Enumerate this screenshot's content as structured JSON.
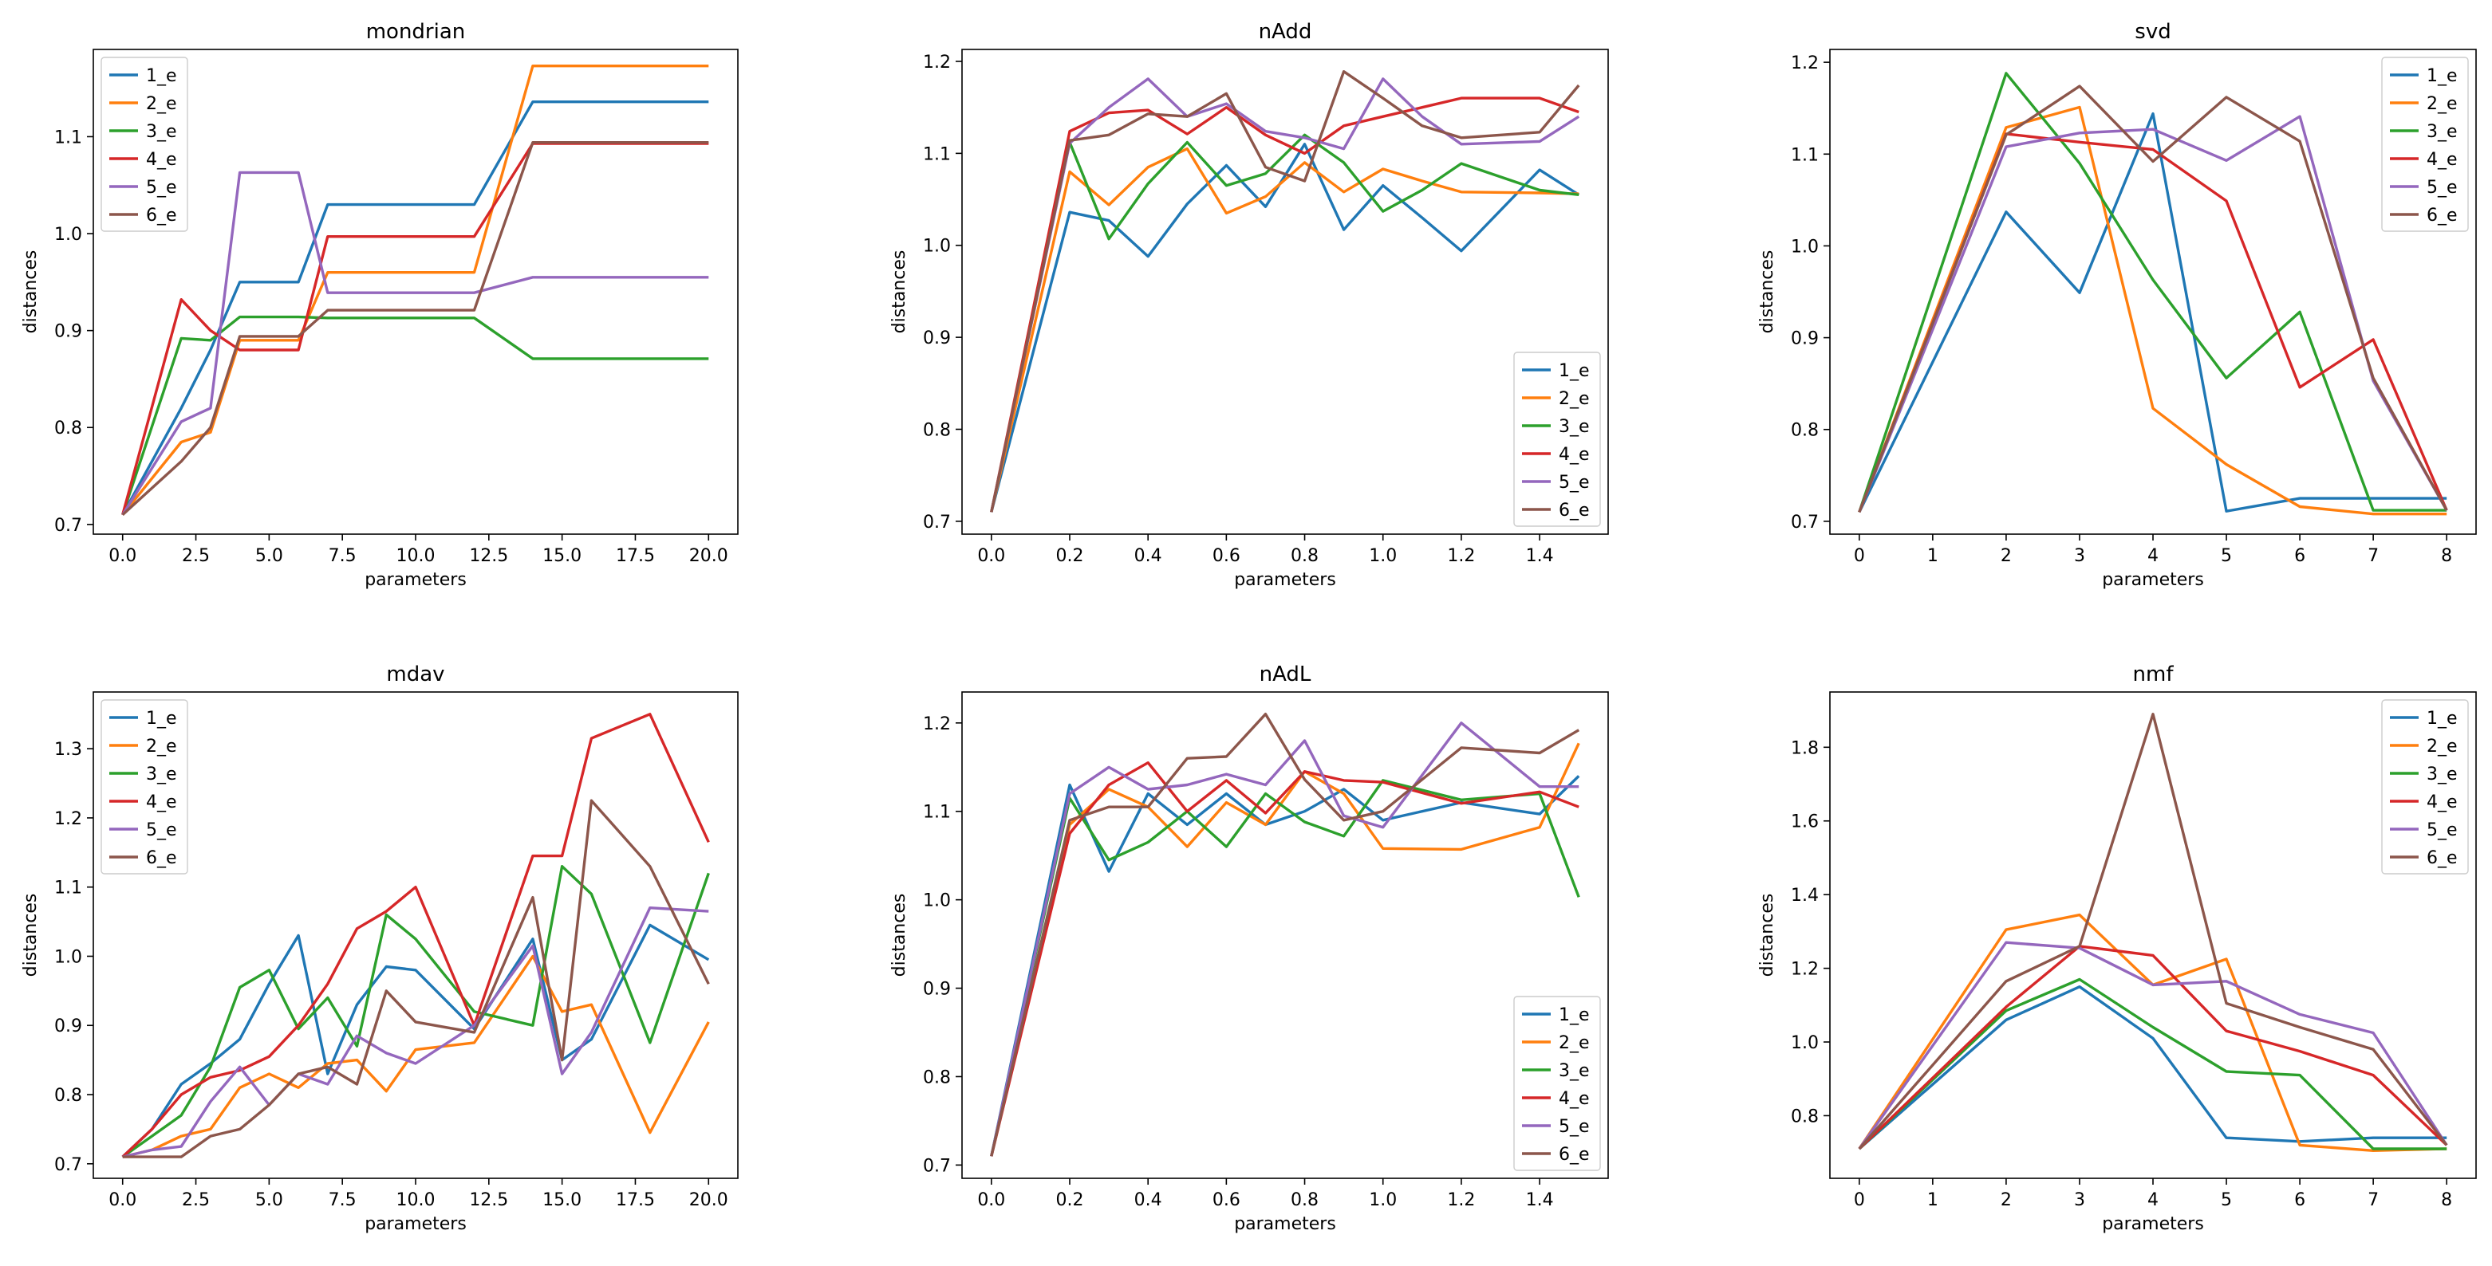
{
  "colors": [
    "#1f77b4",
    "#ff7f0e",
    "#2ca02c",
    "#d62728",
    "#9467bd",
    "#8c564b"
  ],
  "chart_data": [
    {
      "type": "line",
      "title": "mondrian",
      "xlabel": "parameters",
      "ylabel": "distances",
      "xlim": [
        -1,
        21
      ],
      "ylim": [
        0.69,
        1.19
      ],
      "xticks": [
        0.0,
        2.5,
        5.0,
        7.5,
        10.0,
        12.5,
        15.0,
        17.5,
        20.0
      ],
      "xtick_labels": [
        "0.0",
        "2.5",
        "5.0",
        "7.5",
        "10.0",
        "12.5",
        "15.0",
        "17.5",
        "20.0"
      ],
      "yticks": [
        0.7,
        0.8,
        0.9,
        1.0,
        1.1
      ],
      "ytick_labels": [
        "0.7",
        "0.8",
        "0.9",
        "1.0",
        "1.1"
      ],
      "legend_position": "upper-left",
      "x": [
        0,
        2,
        3,
        4,
        5,
        6,
        7,
        8,
        9,
        10,
        11,
        12,
        14,
        16,
        18,
        20
      ],
      "series": [
        {
          "name": "1_e",
          "values": [
            0.71,
            0.82,
            0.88,
            0.95,
            0.95,
            0.95,
            1.03,
            1.03,
            1.03,
            1.03,
            1.03,
            1.03,
            1.136,
            1.136,
            1.136,
            1.136
          ]
        },
        {
          "name": "2_e",
          "values": [
            0.71,
            0.785,
            0.795,
            0.89,
            0.89,
            0.89,
            0.96,
            0.96,
            0.96,
            0.96,
            0.96,
            0.96,
            1.173,
            1.173,
            1.173,
            1.173
          ]
        },
        {
          "name": "3_e",
          "values": [
            0.71,
            0.892,
            0.89,
            0.914,
            0.914,
            0.914,
            0.913,
            0.913,
            0.913,
            0.913,
            0.913,
            0.913,
            0.871,
            0.871,
            0.871,
            0.871
          ]
        },
        {
          "name": "4_e",
          "values": [
            0.71,
            0.932,
            0.9,
            0.88,
            0.88,
            0.88,
            0.997,
            0.997,
            0.997,
            0.997,
            0.997,
            0.997,
            1.093,
            1.093,
            1.093,
            1.093
          ]
        },
        {
          "name": "5_e",
          "values": [
            0.71,
            0.806,
            0.82,
            1.063,
            1.063,
            1.063,
            0.939,
            0.939,
            0.939,
            0.939,
            0.939,
            0.939,
            0.955,
            0.955,
            0.955,
            0.955
          ]
        },
        {
          "name": "6_e",
          "values": [
            0.71,
            0.765,
            0.8,
            0.894,
            0.894,
            0.894,
            0.921,
            0.921,
            0.921,
            0.921,
            0.921,
            0.921,
            1.094,
            1.094,
            1.094,
            1.094
          ]
        }
      ]
    },
    {
      "type": "line",
      "title": "nAdd",
      "xlabel": "parameters",
      "ylabel": "distances",
      "xlim": [
        -0.075,
        1.575
      ],
      "ylim": [
        0.686,
        1.213
      ],
      "xticks": [
        0.0,
        0.2,
        0.4,
        0.6,
        0.8,
        1.0,
        1.2,
        1.4
      ],
      "xtick_labels": [
        "0.0",
        "0.2",
        "0.4",
        "0.6",
        "0.8",
        "1.0",
        "1.2",
        "1.4"
      ],
      "yticks": [
        0.7,
        0.8,
        0.9,
        1.0,
        1.1,
        1.2
      ],
      "ytick_labels": [
        "0.7",
        "0.8",
        "0.9",
        "1.0",
        "1.1",
        "1.2"
      ],
      "legend_position": "lower-right",
      "x": [
        0.0,
        0.2,
        0.3,
        0.4,
        0.5,
        0.6,
        0.7,
        0.8,
        0.9,
        1.0,
        1.1,
        1.2,
        1.4,
        1.5
      ],
      "series": [
        {
          "name": "1_e",
          "values": [
            0.71,
            1.036,
            1.027,
            0.988,
            1.045,
            1.087,
            1.042,
            1.11,
            1.017,
            1.065,
            1.03,
            0.994,
            1.082,
            1.055
          ]
        },
        {
          "name": "2_e",
          "values": [
            0.71,
            1.08,
            1.044,
            1.085,
            1.105,
            1.035,
            1.053,
            1.09,
            1.058,
            1.083,
            1.07,
            1.058,
            1.057,
            1.056
          ]
        },
        {
          "name": "3_e",
          "values": [
            0.71,
            1.112,
            1.007,
            1.067,
            1.112,
            1.065,
            1.078,
            1.12,
            1.09,
            1.037,
            1.06,
            1.089,
            1.06,
            1.055
          ]
        },
        {
          "name": "4_e",
          "values": [
            0.71,
            1.124,
            1.144,
            1.147,
            1.121,
            1.15,
            1.12,
            1.1,
            1.13,
            1.14,
            1.15,
            1.16,
            1.16,
            1.145
          ]
        },
        {
          "name": "5_e",
          "values": [
            0.71,
            1.111,
            1.15,
            1.181,
            1.14,
            1.154,
            1.124,
            1.117,
            1.105,
            1.181,
            1.14,
            1.11,
            1.113,
            1.14
          ]
        },
        {
          "name": "6_e",
          "values": [
            0.71,
            1.114,
            1.12,
            1.143,
            1.14,
            1.165,
            1.085,
            1.07,
            1.189,
            1.16,
            1.13,
            1.117,
            1.123,
            1.174
          ]
        }
      ]
    },
    {
      "type": "line",
      "title": "svd",
      "xlabel": "parameters",
      "ylabel": "distances",
      "xlim": [
        -0.4,
        8.4
      ],
      "ylim": [
        0.686,
        1.214
      ],
      "xticks": [
        0,
        1,
        2,
        3,
        4,
        5,
        6,
        7,
        8
      ],
      "xtick_labels": [
        "0",
        "1",
        "2",
        "3",
        "4",
        "5",
        "6",
        "7",
        "8"
      ],
      "yticks": [
        0.7,
        0.8,
        0.9,
        1.0,
        1.1,
        1.2
      ],
      "ytick_labels": [
        "0.7",
        "0.8",
        "0.9",
        "1.0",
        "1.1",
        "1.2"
      ],
      "legend_position": "upper-right",
      "x": [
        0,
        2,
        3,
        4,
        5,
        6,
        7,
        8
      ],
      "series": [
        {
          "name": "1_e",
          "values": [
            0.71,
            1.037,
            0.949,
            1.144,
            0.711,
            0.725,
            0.725,
            0.725
          ]
        },
        {
          "name": "2_e",
          "values": [
            0.71,
            1.129,
            1.151,
            0.823,
            0.762,
            0.716,
            0.708,
            0.708
          ]
        },
        {
          "name": "3_e",
          "values": [
            0.71,
            1.188,
            1.09,
            0.963,
            0.856,
            0.928,
            0.712,
            0.712
          ]
        },
        {
          "name": "4_e",
          "values": [
            0.71,
            1.122,
            1.113,
            1.105,
            1.049,
            0.846,
            0.898,
            0.712
          ]
        },
        {
          "name": "5_e",
          "values": [
            0.71,
            1.108,
            1.123,
            1.127,
            1.093,
            1.141,
            0.853,
            0.712
          ]
        },
        {
          "name": "6_e",
          "values": [
            0.71,
            1.121,
            1.174,
            1.092,
            1.162,
            1.114,
            0.856,
            0.712
          ]
        }
      ]
    },
    {
      "type": "line",
      "title": "mdav",
      "xlabel": "parameters",
      "ylabel": "distances",
      "xlim": [
        -1,
        21
      ],
      "ylim": [
        0.679,
        1.382
      ],
      "xticks": [
        0.0,
        2.5,
        5.0,
        7.5,
        10.0,
        12.5,
        15.0,
        17.5,
        20.0
      ],
      "xtick_labels": [
        "0.0",
        "2.5",
        "5.0",
        "7.5",
        "10.0",
        "12.5",
        "15.0",
        "17.5",
        "20.0"
      ],
      "yticks": [
        0.7,
        0.8,
        0.9,
        1.0,
        1.1,
        1.2,
        1.3
      ],
      "ytick_labels": [
        "0.7",
        "0.8",
        "0.9",
        "1.0",
        "1.1",
        "1.2",
        "1.3"
      ],
      "legend_position": "upper-left",
      "x": [
        0,
        1,
        2,
        3,
        4,
        5,
        6,
        7,
        8,
        9,
        10,
        12,
        14,
        15,
        16,
        18,
        20
      ],
      "series": [
        {
          "name": "1_e",
          "values": [
            0.71,
            0.75,
            0.815,
            0.845,
            0.88,
            0.96,
            1.03,
            0.83,
            0.93,
            0.985,
            0.98,
            0.895,
            1.025,
            0.85,
            0.88,
            1.045,
            0.995
          ]
        },
        {
          "name": "2_e",
          "values": [
            0.71,
            0.72,
            0.74,
            0.75,
            0.81,
            0.83,
            0.81,
            0.845,
            0.85,
            0.805,
            0.865,
            0.875,
            1.0,
            0.92,
            0.93,
            0.745,
            0.905
          ]
        },
        {
          "name": "3_e",
          "values": [
            0.71,
            0.74,
            0.77,
            0.84,
            0.955,
            0.98,
            0.895,
            0.94,
            0.87,
            1.06,
            1.025,
            0.92,
            0.9,
            1.13,
            1.09,
            0.875,
            1.12
          ]
        },
        {
          "name": "4_e",
          "values": [
            0.71,
            0.75,
            0.8,
            0.825,
            0.835,
            0.855,
            0.9,
            0.96,
            1.04,
            1.065,
            1.1,
            0.9,
            1.145,
            1.145,
            1.315,
            1.35,
            1.165
          ]
        },
        {
          "name": "5_e",
          "values": [
            0.71,
            0.72,
            0.725,
            0.79,
            0.84,
            0.785,
            0.83,
            0.815,
            0.885,
            0.86,
            0.845,
            0.9,
            1.015,
            0.83,
            0.89,
            1.07,
            1.065
          ]
        },
        {
          "name": "6_e",
          "values": [
            0.71,
            0.71,
            0.71,
            0.74,
            0.75,
            0.785,
            0.83,
            0.84,
            0.815,
            0.95,
            0.905,
            0.89,
            1.085,
            0.85,
            1.225,
            1.13,
            0.96
          ]
        }
      ]
    },
    {
      "type": "line",
      "title": "nAdL",
      "xlabel": "parameters",
      "ylabel": "distances",
      "xlim": [
        -0.075,
        1.575
      ],
      "ylim": [
        0.685,
        1.235
      ],
      "xticks": [
        0.0,
        0.2,
        0.4,
        0.6,
        0.8,
        1.0,
        1.2,
        1.4
      ],
      "xtick_labels": [
        "0.0",
        "0.2",
        "0.4",
        "0.6",
        "0.8",
        "1.0",
        "1.2",
        "1.4"
      ],
      "yticks": [
        0.7,
        0.8,
        0.9,
        1.0,
        1.1,
        1.2
      ],
      "ytick_labels": [
        "0.7",
        "0.8",
        "0.9",
        "1.0",
        "1.1",
        "1.2"
      ],
      "legend_position": "lower-right",
      "x": [
        0.0,
        0.2,
        0.3,
        0.4,
        0.5,
        0.6,
        0.7,
        0.8,
        0.9,
        1.0,
        1.2,
        1.4,
        1.5
      ],
      "series": [
        {
          "name": "1_e",
          "values": [
            0.71,
            1.13,
            1.032,
            1.12,
            1.085,
            1.12,
            1.085,
            1.1,
            1.125,
            1.09,
            1.11,
            1.097,
            1.14
          ]
        },
        {
          "name": "2_e",
          "values": [
            0.71,
            1.085,
            1.125,
            1.105,
            1.06,
            1.11,
            1.085,
            1.145,
            1.12,
            1.058,
            1.057,
            1.082,
            1.177
          ]
        },
        {
          "name": "3_e",
          "values": [
            0.71,
            1.115,
            1.045,
            1.065,
            1.1,
            1.06,
            1.12,
            1.088,
            1.072,
            1.135,
            1.113,
            1.12,
            1.003
          ]
        },
        {
          "name": "4_e",
          "values": [
            0.71,
            1.075,
            1.13,
            1.155,
            1.1,
            1.135,
            1.098,
            1.145,
            1.135,
            1.133,
            1.109,
            1.122,
            1.105
          ]
        },
        {
          "name": "5_e",
          "values": [
            0.71,
            1.12,
            1.15,
            1.125,
            1.13,
            1.142,
            1.13,
            1.18,
            1.095,
            1.082,
            1.2,
            1.128,
            1.128
          ]
        },
        {
          "name": "6_e",
          "values": [
            0.71,
            1.09,
            1.105,
            1.105,
            1.16,
            1.162,
            1.21,
            1.136,
            1.09,
            1.1,
            1.172,
            1.166,
            1.192
          ]
        }
      ]
    },
    {
      "type": "line",
      "title": "nmf",
      "xlabel": "parameters",
      "ylabel": "distances",
      "xlim": [
        -0.4,
        8.4
      ],
      "ylim": [
        0.63,
        1.95
      ],
      "xticks": [
        0,
        1,
        2,
        3,
        4,
        5,
        6,
        7,
        8
      ],
      "xtick_labels": [
        "0",
        "1",
        "2",
        "3",
        "4",
        "5",
        "6",
        "7",
        "8"
      ],
      "yticks": [
        0.8,
        1.0,
        1.2,
        1.4,
        1.6,
        1.8
      ],
      "ytick_labels": [
        "0.8",
        "1.0",
        "1.2",
        "1.4",
        "1.6",
        "1.8"
      ],
      "legend_position": "upper-right",
      "x": [
        0,
        2,
        3,
        4,
        5,
        6,
        7,
        8
      ],
      "series": [
        {
          "name": "1_e",
          "values": [
            0.71,
            1.06,
            1.15,
            1.01,
            0.74,
            0.73,
            0.74,
            0.74
          ]
        },
        {
          "name": "2_e",
          "values": [
            0.71,
            1.305,
            1.345,
            1.155,
            1.225,
            0.72,
            0.705,
            0.71
          ]
        },
        {
          "name": "3_e",
          "values": [
            0.71,
            1.085,
            1.17,
            1.04,
            0.92,
            0.91,
            0.71,
            0.71
          ]
        },
        {
          "name": "4_e",
          "values": [
            0.71,
            1.095,
            1.26,
            1.235,
            1.03,
            0.975,
            0.91,
            0.72
          ]
        },
        {
          "name": "5_e",
          "values": [
            0.71,
            1.27,
            1.255,
            1.155,
            1.165,
            1.075,
            1.025,
            0.72
          ]
        },
        {
          "name": "6_e",
          "values": [
            0.71,
            1.165,
            1.26,
            1.89,
            1.105,
            1.04,
            0.98,
            0.72
          ]
        }
      ]
    }
  ]
}
